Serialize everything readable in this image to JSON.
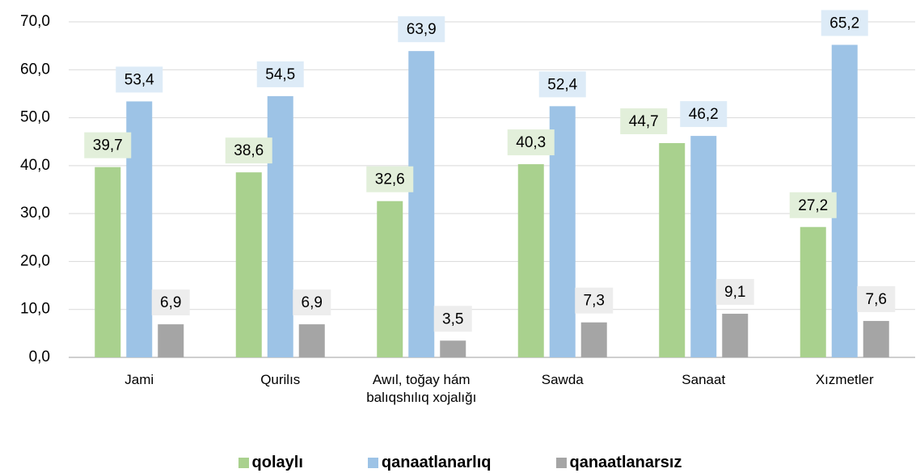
{
  "chart_data": {
    "type": "bar",
    "categories": [
      "Jami",
      "Qurilıs",
      "Awıl, toğay hám balıqshılıq xojalığı",
      "Sawda",
      "Sanaat",
      "Xızmetler"
    ],
    "series": [
      {
        "name": "qolaylı",
        "color": "#a9d18e",
        "label_bg": "#e2efda",
        "values": [
          39.7,
          38.6,
          32.6,
          40.3,
          44.7,
          27.2
        ],
        "value_labels": [
          "39,7",
          "38,6",
          "32,6",
          "40,3",
          "44,7",
          "27,2"
        ]
      },
      {
        "name": "qanaatlanarlıq",
        "color": "#9dc3e6",
        "label_bg": "#ddebf7",
        "values": [
          53.4,
          54.5,
          63.9,
          52.4,
          46.2,
          65.2
        ],
        "value_labels": [
          "53,4",
          "54,5",
          "63,9",
          "52,4",
          "46,2",
          "65,2"
        ]
      },
      {
        "name": "qanaatlanarsız",
        "color": "#a5a5a5",
        "label_bg": "#ededed",
        "values": [
          6.9,
          6.9,
          3.5,
          7.3,
          9.1,
          7.6
        ],
        "value_labels": [
          "6,9",
          "6,9",
          "3,5",
          "7,3",
          "9,1",
          "7,6"
        ]
      }
    ],
    "ylim": [
      0,
      70
    ],
    "yticks": [
      {
        "value": 0,
        "label": "0,0"
      },
      {
        "value": 10,
        "label": "10,0"
      },
      {
        "value": 20,
        "label": "20,0"
      },
      {
        "value": 30,
        "label": "30,0"
      },
      {
        "value": 40,
        "label": "40,0"
      },
      {
        "value": 50,
        "label": "50,0"
      },
      {
        "value": 60,
        "label": "60,0"
      },
      {
        "value": 70,
        "label": "70,0"
      }
    ],
    "grid": true,
    "legend": "bottom"
  }
}
